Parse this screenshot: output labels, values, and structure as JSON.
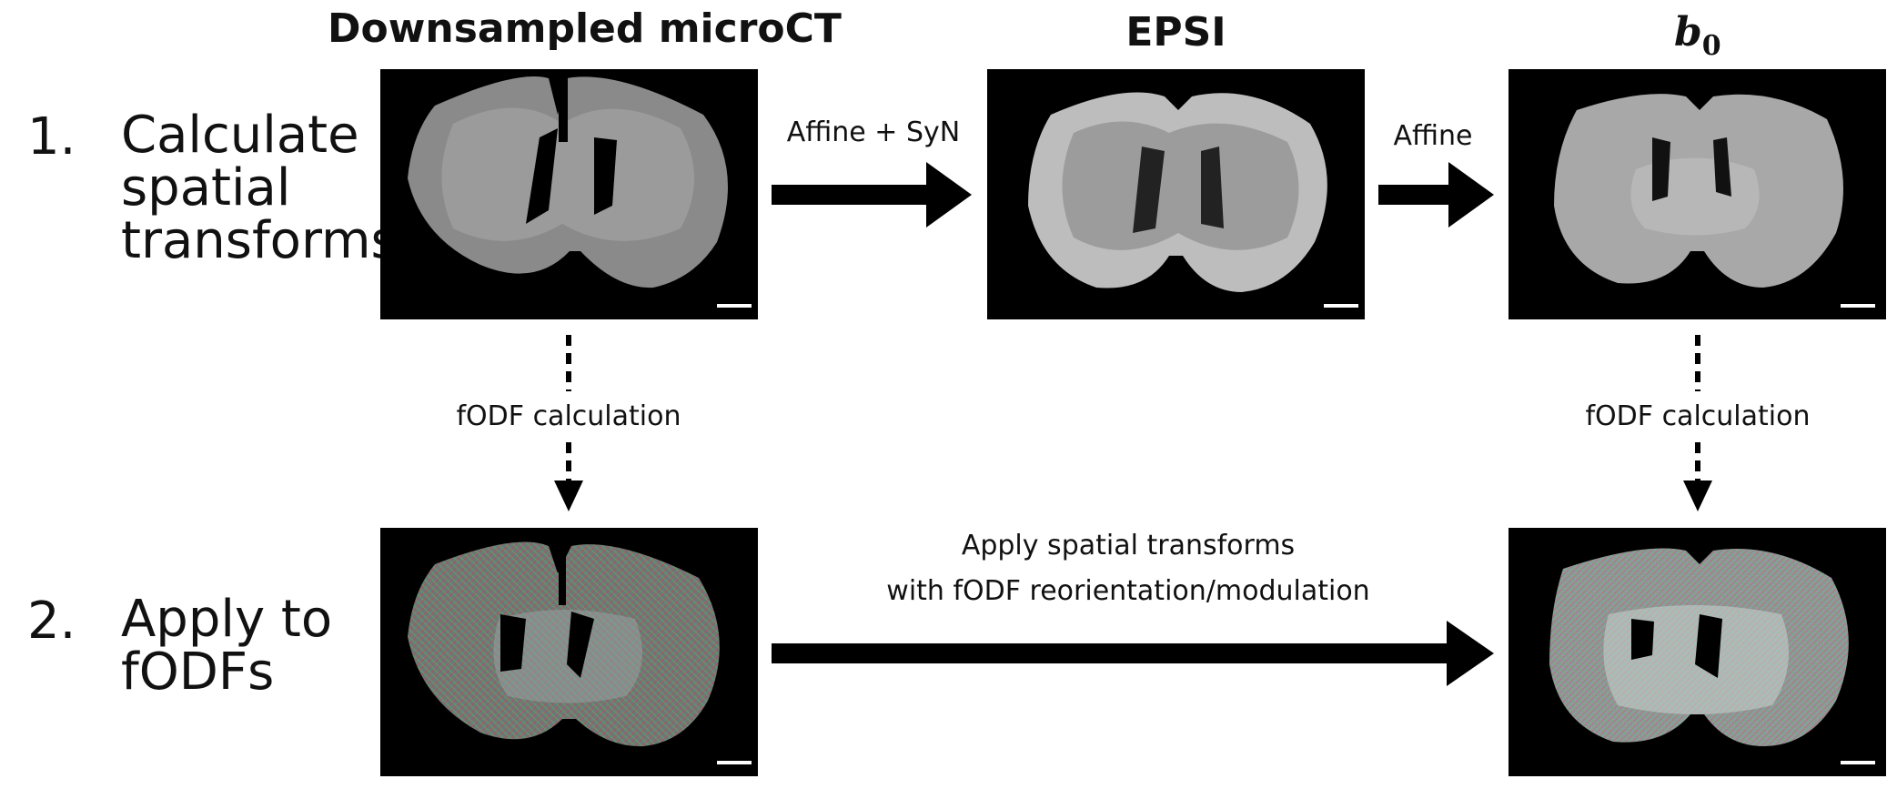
{
  "columns": {
    "microct": "Downsampled microCT",
    "epsi": "EPSI",
    "b0_base": "b",
    "b0_sub": "0"
  },
  "steps": [
    {
      "number": "1.",
      "lines": [
        "Calculate",
        "spatial",
        "transforms"
      ]
    },
    {
      "number": "2.",
      "lines": [
        "Apply to",
        "fODFs"
      ]
    }
  ],
  "edges": {
    "microct_to_epsi": "Affine + SyN",
    "epsi_to_b0": "Affine",
    "fodf_left": "fODF calculation",
    "fodf_right": "fODF calculation",
    "apply_line1": "Apply spatial transforms",
    "apply_line2": "with fODF reorientation/modulation"
  },
  "colors": {
    "background": "#ffffff",
    "panel": "#000000",
    "arrow": "#000000",
    "scalebar": "#ffffff"
  }
}
